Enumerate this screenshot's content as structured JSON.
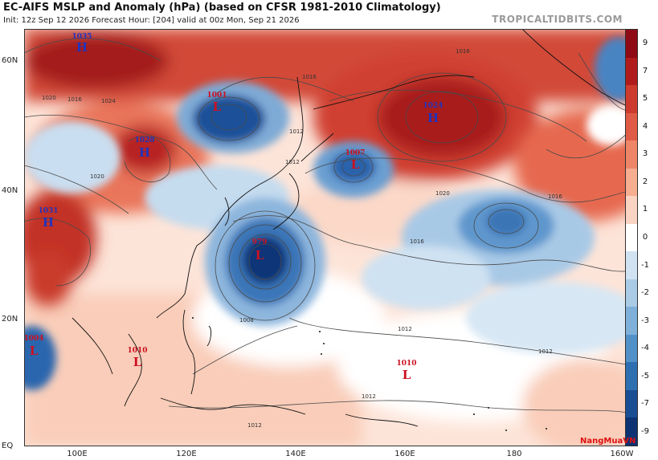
{
  "header": {
    "title": "EC-AIFS MSLP and Anomaly (hPa) (based on CFSR 1981-2010 Climatology)",
    "subtitle": "Init: 12z Sep 12 2026   Forecast Hour: [204]   valid at 00z Mon, Sep 21 2026",
    "brand": "TROPICALTIDBITS.COM"
  },
  "axes": {
    "lat_labels": [
      "60N",
      "40N",
      "20N",
      "EQ"
    ],
    "lon_labels": [
      "100E",
      "120E",
      "140E",
      "160E",
      "180",
      "160W"
    ]
  },
  "colorbar": {
    "ticks": [
      "9",
      "7",
      "5",
      "4",
      "3",
      "2",
      "1",
      "0",
      "-1",
      "-2",
      "-3",
      "-4",
      "-5",
      "-7",
      "-9"
    ],
    "colors": [
      "#8e0a14",
      "#b01c1c",
      "#cd3b2f",
      "#e05b45",
      "#ee8566",
      "#f6ad90",
      "#fbd3c2",
      "#ffffff",
      "#d1e3f2",
      "#a9cbe6",
      "#7eb0d9",
      "#5290c8",
      "#2e6fb2",
      "#194e95",
      "#0d3273"
    ]
  },
  "pressure_centers": [
    {
      "type": "H",
      "value": "1035",
      "color": "#2233bb"
    },
    {
      "type": "L",
      "value": "1001",
      "color": "#cc1122"
    },
    {
      "type": "H",
      "value": "1028",
      "color": "#2233bb"
    },
    {
      "type": "L",
      "value": "1007",
      "color": "#cc1122"
    },
    {
      "type": "H",
      "value": "1024",
      "color": "#2233bb"
    },
    {
      "type": "H",
      "value": "1031",
      "color": "#2233bb"
    },
    {
      "type": "L",
      "value": "979",
      "color": "#cc1122"
    },
    {
      "type": "L",
      "value": "1004",
      "color": "#cc1122"
    },
    {
      "type": "L",
      "value": "1010",
      "color": "#cc1122"
    },
    {
      "type": "L",
      "value": "1010",
      "color": "#cc1122"
    }
  ],
  "isobar_labels": [
    "1016",
    "1020",
    "1012",
    "1008",
    "1016",
    "1012",
    "1012",
    "1012",
    "1012",
    "1016",
    "1020",
    "1024",
    "1016",
    "1012",
    "1016",
    "1020"
  ],
  "watermark": "NangMuaVN"
}
